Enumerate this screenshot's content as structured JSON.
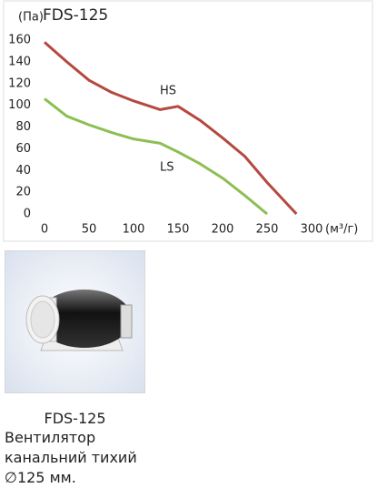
{
  "chart_data": {
    "type": "line",
    "title": "FDS-125",
    "y_label": "(Па)",
    "x_label": "(м³/г)",
    "xlim": [
      0,
      300
    ],
    "xticks": [
      0,
      50,
      100,
      150,
      200,
      250,
      300
    ],
    "ylim": [
      0,
      160
    ],
    "yticks": [
      0,
      20,
      40,
      60,
      80,
      100,
      120,
      140,
      160
    ],
    "grid": false,
    "series": [
      {
        "name": "HS",
        "color": "#b5483f",
        "x": [
          0,
          25,
          50,
          75,
          100,
          130,
          150,
          175,
          200,
          225,
          250,
          283
        ],
        "values": [
          158,
          140,
          123,
          112,
          104,
          96,
          99,
          86,
          70,
          53,
          29,
          0
        ]
      },
      {
        "name": "LS",
        "color": "#8cbf52",
        "x": [
          0,
          25,
          50,
          75,
          100,
          130,
          150,
          175,
          200,
          225,
          250
        ],
        "values": [
          106,
          90,
          82,
          75,
          69,
          65,
          57,
          46,
          33,
          17,
          0
        ]
      }
    ]
  },
  "product": {
    "model": "FDS-125",
    "description": [
      "Вентилятор",
      "канальний тихий",
      "∅125 мм."
    ]
  }
}
